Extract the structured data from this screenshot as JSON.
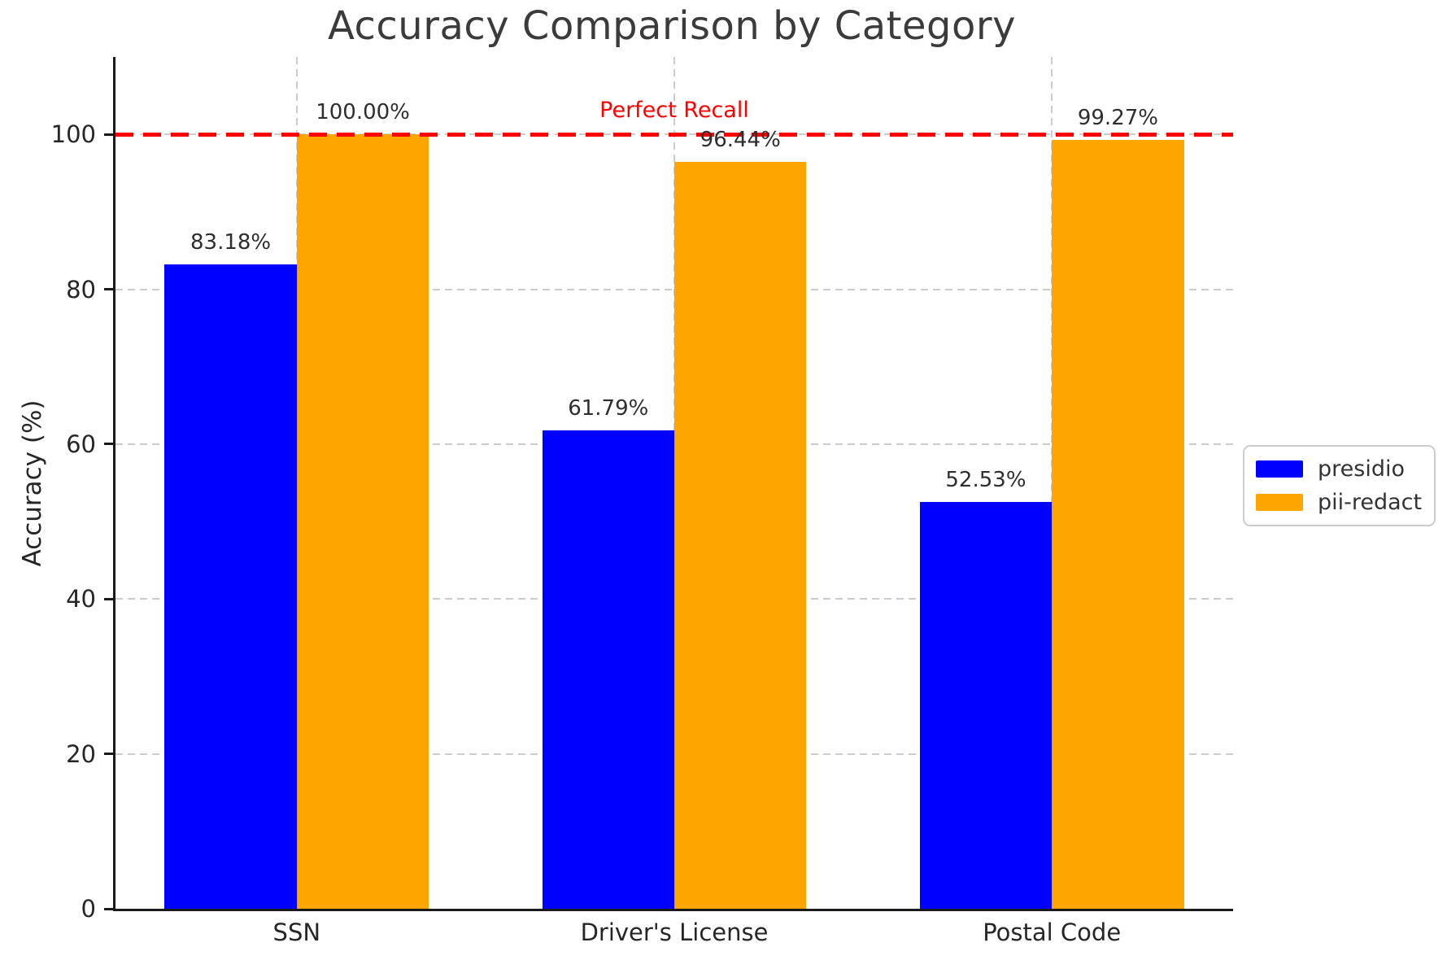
{
  "chart_data": {
    "type": "bar",
    "title": "Accuracy Comparison by Category",
    "ylabel": "Accuracy (%)",
    "xlabel": "",
    "categories": [
      "SSN",
      "Driver's License",
      "Postal Code"
    ],
    "series": [
      {
        "name": "presidio",
        "color": "#0000ff",
        "values": [
          83.18,
          61.79,
          52.53
        ],
        "labels": [
          "83.18%",
          "61.79%",
          "52.53%"
        ]
      },
      {
        "name": "pii-redact",
        "color": "#ffa500",
        "values": [
          100.0,
          96.44,
          99.27
        ],
        "labels": [
          "100.00%",
          "96.44%",
          "99.27%"
        ]
      }
    ],
    "yticks": [
      0,
      20,
      40,
      60,
      80,
      100
    ],
    "ylim": [
      0,
      110
    ],
    "grid": true,
    "legend_position": "right-outside",
    "reference_line": {
      "value": 100,
      "label": "Perfect Recall",
      "color": "#ff0000",
      "style": "dashed"
    }
  },
  "colors": {
    "presidio": "#0000ff",
    "pii_redact": "#ffa500",
    "reference": "#ff0000",
    "grid": "#cccccc",
    "spine": "#1a1a1a",
    "text": "#333333"
  }
}
